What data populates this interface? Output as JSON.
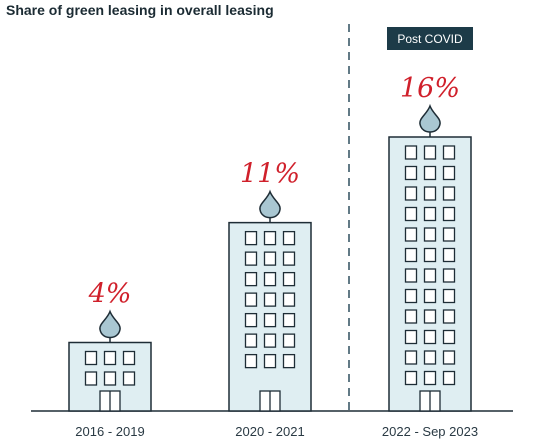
{
  "chart_data": {
    "type": "bar",
    "title": "Share of green leasing in overall leasing",
    "categories": [
      "2016 - 2019",
      "2020 - 2021",
      "2022 - Sep 2023"
    ],
    "values": [
      4,
      11,
      16
    ],
    "value_labels": [
      "4%",
      "11%",
      "16%"
    ],
    "unit": "%",
    "annotation": {
      "label": "Post COVID",
      "applies_to": "2022 - Sep 2023",
      "style": "dashed vertical divider"
    },
    "xlabel": "",
    "ylabel": "",
    "grid": false,
    "legend": "none",
    "mark_style": "building icons with leaf on top"
  },
  "colors": {
    "building_fill": "#dfeef2",
    "building_stroke": "#1e2d36",
    "value_label": "#d0202b",
    "badge_background": "#1d3b48",
    "badge_text": "#ffffff",
    "divider": "#2f4f5e",
    "text": "#1b2b33"
  },
  "icons": {
    "bar": "office-building-icon",
    "top": "leaf-icon"
  }
}
